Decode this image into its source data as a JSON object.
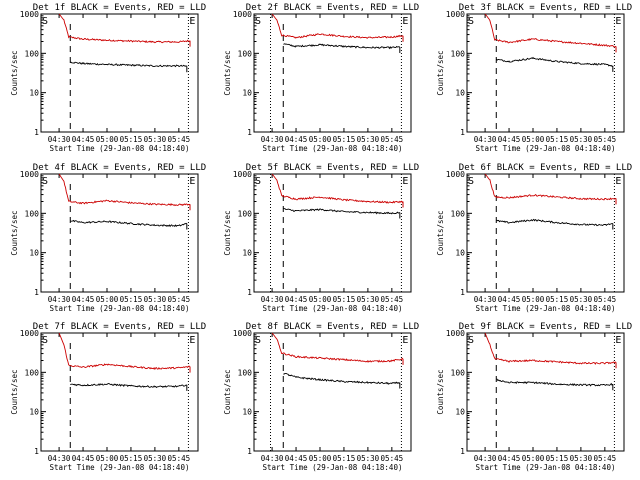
{
  "figure": {
    "start_label": "Start Time (29-Jan-08 04:18:40)",
    "ylabel": "Counts/sec",
    "yticks": [
      "1",
      "10",
      "100",
      "1000"
    ],
    "xticks": [
      "04:30",
      "04:45",
      "05:00",
      "05:15",
      "05:30",
      "05:45"
    ],
    "start_marker": "S",
    "end_marker": "E",
    "colors": {
      "events": "#000000",
      "lld": "#cc0000",
      "axes": "#000000"
    }
  },
  "chart_data": [
    {
      "type": "line",
      "title": "Det 1f BLACK = Events, RED = LLD",
      "xlabel": "Start Time (29-Jan-08 04:18:40)",
      "ylabel": "Counts/sec",
      "log_y": true,
      "ylim": [
        1,
        1000
      ],
      "xlim": [
        "04:18:40",
        "05:57:00"
      ],
      "x_ticks": [
        "04:30",
        "04:45",
        "05:00",
        "05:15",
        "05:30",
        "05:45"
      ],
      "markers": {
        "S": "04:18:40",
        "E": "05:51:00",
        "dash": "04:37:00",
        "dotted": [
          "05:51:00"
        ]
      },
      "x": [
        "04:36",
        "04:45",
        "05:00",
        "05:15",
        "05:30",
        "05:45",
        "05:52"
      ],
      "series": [
        {
          "name": "LLD",
          "color": "#cc0000",
          "x": [
            "04:30",
            "04:33",
            "04:36",
            "04:45",
            "05:00",
            "05:15",
            "05:30",
            "05:45",
            "05:52"
          ],
          "values": [
            1000,
            700,
            260,
            230,
            215,
            205,
            195,
            195,
            210
          ]
        },
        {
          "name": "Events",
          "color": "#000000",
          "x": [
            "04:37",
            "04:45",
            "05:00",
            "05:15",
            "05:30",
            "05:45",
            "05:50"
          ],
          "values": [
            60,
            55,
            52,
            50,
            48,
            48,
            47
          ]
        }
      ]
    },
    {
      "type": "line",
      "title": "Det 2f BLACK = Events, RED = LLD",
      "xlabel": "Start Time (29-Jan-08 04:18:40)",
      "ylabel": "Counts/sec",
      "log_y": true,
      "ylim": [
        1,
        1000
      ],
      "xlim": [
        "04:18:40",
        "05:57:00"
      ],
      "x_ticks": [
        "04:30",
        "04:45",
        "05:00",
        "05:15",
        "05:30",
        "05:45"
      ],
      "markers": {
        "S": "04:18:40",
        "E": "05:51:00",
        "dash": "04:37:00",
        "dotted": [
          "04:29:00",
          "05:51:00"
        ]
      },
      "series": [
        {
          "name": "LLD",
          "color": "#cc0000",
          "x": [
            "04:30",
            "04:33",
            "04:36",
            "04:45",
            "05:00",
            "05:15",
            "05:30",
            "05:45",
            "05:52"
          ],
          "values": [
            1000,
            700,
            290,
            250,
            310,
            270,
            250,
            260,
            280
          ]
        },
        {
          "name": "Events",
          "color": "#000000",
          "x": [
            "04:37",
            "04:45",
            "05:00",
            "05:15",
            "05:30",
            "05:45",
            "05:50"
          ],
          "values": [
            175,
            150,
            165,
            150,
            140,
            140,
            145
          ]
        }
      ]
    },
    {
      "type": "line",
      "title": "Det 3f BLACK = Events, RED = LLD",
      "xlabel": "Start Time (29-Jan-08 04:18:40)",
      "ylabel": "Counts/sec",
      "log_y": true,
      "ylim": [
        1,
        1000
      ],
      "xlim": [
        "04:18:40",
        "05:57:00"
      ],
      "x_ticks": [
        "04:30",
        "04:45",
        "05:00",
        "05:15",
        "05:30",
        "05:45"
      ],
      "markers": {
        "S": "04:18:40",
        "E": "05:51:00",
        "dash": "04:37:00",
        "dotted": [
          "05:51:00"
        ]
      },
      "series": [
        {
          "name": "LLD",
          "color": "#cc0000",
          "x": [
            "04:30",
            "04:33",
            "04:36",
            "04:45",
            "05:00",
            "05:15",
            "05:30",
            "05:45",
            "05:52"
          ],
          "values": [
            1000,
            700,
            220,
            190,
            230,
            200,
            180,
            160,
            150
          ]
        },
        {
          "name": "Events",
          "color": "#000000",
          "x": [
            "04:37",
            "04:45",
            "05:00",
            "05:15",
            "05:30",
            "05:45",
            "05:50"
          ],
          "values": [
            70,
            62,
            75,
            62,
            55,
            52,
            48
          ]
        }
      ]
    },
    {
      "type": "line",
      "title": "Det 4f BLACK = Events, RED = LLD",
      "xlabel": "Start Time (29-Jan-08 04:18:40)",
      "ylabel": "Counts/sec",
      "log_y": true,
      "ylim": [
        1,
        1000
      ],
      "xlim": [
        "04:18:40",
        "05:57:00"
      ],
      "x_ticks": [
        "04:30",
        "04:45",
        "05:00",
        "05:15",
        "05:30",
        "05:45"
      ],
      "markers": {
        "S": "04:18:40",
        "E": "05:51:00",
        "dash": "04:37:00",
        "dotted": [
          "05:51:00"
        ]
      },
      "series": [
        {
          "name": "LLD",
          "color": "#cc0000",
          "x": [
            "04:30",
            "04:33",
            "04:36",
            "04:45",
            "05:00",
            "05:15",
            "05:30",
            "05:45",
            "05:52"
          ],
          "values": [
            1000,
            650,
            200,
            180,
            210,
            185,
            170,
            165,
            170
          ]
        },
        {
          "name": "Events",
          "color": "#000000",
          "x": [
            "04:37",
            "04:45",
            "05:00",
            "05:15",
            "05:30",
            "05:45",
            "05:50"
          ],
          "values": [
            65,
            58,
            62,
            55,
            50,
            48,
            55
          ]
        }
      ]
    },
    {
      "type": "line",
      "title": "Det 5f BLACK = Events, RED = LLD",
      "xlabel": "Start Time (29-Jan-08 04:18:40)",
      "ylabel": "Counts/sec",
      "log_y": true,
      "ylim": [
        1,
        1000
      ],
      "xlim": [
        "04:18:40",
        "05:57:00"
      ],
      "x_ticks": [
        "04:30",
        "04:45",
        "05:00",
        "05:15",
        "05:30",
        "05:45"
      ],
      "markers": {
        "S": "04:18:40",
        "E": "05:51:00",
        "dash": "04:37:00",
        "dotted": [
          "04:29:00",
          "05:51:00"
        ]
      },
      "series": [
        {
          "name": "LLD",
          "color": "#cc0000",
          "x": [
            "04:30",
            "04:33",
            "04:36",
            "04:45",
            "05:00",
            "05:15",
            "05:30",
            "05:45",
            "05:52"
          ],
          "values": [
            1000,
            700,
            280,
            230,
            260,
            220,
            200,
            190,
            200
          ]
        },
        {
          "name": "Events",
          "color": "#000000",
          "x": [
            "04:37",
            "04:45",
            "05:00",
            "05:15",
            "05:30",
            "05:45",
            "05:50"
          ],
          "values": [
            130,
            115,
            125,
            110,
            105,
            100,
            105
          ]
        }
      ]
    },
    {
      "type": "line",
      "title": "Det 6f BLACK = Events, RED = LLD",
      "xlabel": "Start Time (29-Jan-08 04:18:40)",
      "ylabel": "Counts/sec",
      "log_y": true,
      "ylim": [
        1,
        1000
      ],
      "xlim": [
        "04:18:40",
        "05:57:00"
      ],
      "x_ticks": [
        "04:30",
        "04:45",
        "05:00",
        "05:15",
        "05:30",
        "05:45"
      ],
      "markers": {
        "S": "04:18:40",
        "E": "05:51:00",
        "dash": "04:37:00",
        "dotted": [
          "05:51:00"
        ]
      },
      "series": [
        {
          "name": "LLD",
          "color": "#cc0000",
          "x": [
            "04:30",
            "04:33",
            "04:36",
            "04:45",
            "05:00",
            "05:15",
            "05:30",
            "05:45",
            "05:52"
          ],
          "values": [
            1000,
            700,
            260,
            250,
            290,
            260,
            235,
            230,
            240
          ]
        },
        {
          "name": "Events",
          "color": "#000000",
          "x": [
            "04:37",
            "04:45",
            "05:00",
            "05:15",
            "05:30",
            "05:45",
            "05:50"
          ],
          "values": [
            65,
            58,
            68,
            58,
            52,
            50,
            55
          ]
        }
      ]
    },
    {
      "type": "line",
      "title": "Det 7f BLACK = Events, RED = LLD",
      "xlabel": "Start Time (29-Jan-08 04:18:40)",
      "ylabel": "Counts/sec",
      "log_y": true,
      "ylim": [
        1,
        1000
      ],
      "xlim": [
        "04:18:40",
        "05:57:00"
      ],
      "x_ticks": [
        "04:30",
        "04:45",
        "05:00",
        "05:15",
        "05:30",
        "05:45"
      ],
      "markers": {
        "S": "04:18:40",
        "E": "05:51:00",
        "dash": "04:37:00",
        "dotted": [
          "05:51:00"
        ]
      },
      "series": [
        {
          "name": "LLD",
          "color": "#cc0000",
          "x": [
            "04:30",
            "04:33",
            "04:36",
            "04:45",
            "05:00",
            "05:15",
            "05:30",
            "05:45",
            "05:52"
          ],
          "values": [
            1000,
            500,
            150,
            135,
            160,
            140,
            125,
            130,
            140
          ]
        },
        {
          "name": "Events",
          "color": "#000000",
          "x": [
            "04:37",
            "04:45",
            "05:00",
            "05:15",
            "05:30",
            "05:45",
            "05:50"
          ],
          "values": [
            50,
            47,
            50,
            45,
            43,
            44,
            48
          ]
        }
      ]
    },
    {
      "type": "line",
      "title": "Det 8f BLACK = Events, RED = LLD",
      "xlabel": "Start Time (29-Jan-08 04:18:40)",
      "ylabel": "Counts/sec",
      "log_y": true,
      "ylim": [
        1,
        1000
      ],
      "xlim": [
        "04:18:40",
        "05:57:00"
      ],
      "x_ticks": [
        "04:30",
        "04:45",
        "05:00",
        "05:15",
        "05:30",
        "05:45"
      ],
      "markers": {
        "S": "04:18:40",
        "E": "05:51:00",
        "dash": "04:37:00",
        "dotted": [
          "04:29:00",
          "05:51:00"
        ]
      },
      "series": [
        {
          "name": "LLD",
          "color": "#cc0000",
          "x": [
            "04:30",
            "04:33",
            "04:36",
            "04:45",
            "05:00",
            "05:15",
            "05:30",
            "05:45",
            "05:52"
          ],
          "values": [
            1000,
            700,
            310,
            250,
            230,
            210,
            190,
            195,
            220
          ]
        },
        {
          "name": "Events",
          "color": "#000000",
          "x": [
            "04:37",
            "04:45",
            "05:00",
            "05:15",
            "05:30",
            "05:45",
            "05:50"
          ],
          "values": [
            95,
            75,
            65,
            58,
            55,
            52,
            55
          ]
        }
      ]
    },
    {
      "type": "line",
      "title": "Det 9f BLACK = Events, RED = LLD",
      "xlabel": "Start Time (29-Jan-08 04:18:40)",
      "ylabel": "Counts/sec",
      "log_y": true,
      "ylim": [
        1,
        1000
      ],
      "xlim": [
        "04:18:40",
        "05:57:00"
      ],
      "x_ticks": [
        "04:30",
        "04:45",
        "05:00",
        "05:15",
        "05:30",
        "05:45"
      ],
      "markers": {
        "S": "04:18:40",
        "E": "05:51:00",
        "dash": "04:37:00",
        "dotted": [
          "05:51:00"
        ]
      },
      "series": [
        {
          "name": "LLD",
          "color": "#cc0000",
          "x": [
            "04:30",
            "04:33",
            "04:36",
            "04:45",
            "05:00",
            "05:15",
            "05:30",
            "05:45",
            "05:52"
          ],
          "values": [
            1000,
            500,
            220,
            190,
            200,
            185,
            170,
            170,
            180
          ]
        },
        {
          "name": "Events",
          "color": "#000000",
          "x": [
            "04:37",
            "04:45",
            "05:00",
            "05:15",
            "05:30",
            "05:45",
            "05:50"
          ],
          "values": [
            65,
            55,
            55,
            50,
            48,
            47,
            50
          ]
        }
      ]
    }
  ]
}
